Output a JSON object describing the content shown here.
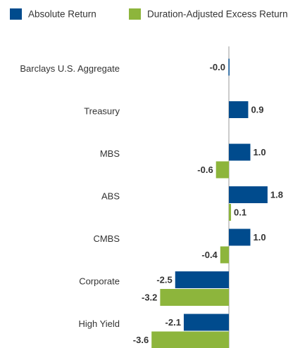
{
  "chart_data": {
    "type": "bar",
    "orientation": "horizontal",
    "categories": [
      "Barclays U.S. Aggregate",
      "Treasury",
      "MBS",
      "ABS",
      "CMBS",
      "Corporate",
      "High Yield"
    ],
    "series": [
      {
        "name": "Absolute Return",
        "color": "#004b8d",
        "values": [
          -0.02,
          0.9,
          1.0,
          1.8,
          1.0,
          -2.5,
          -2.1
        ],
        "value_labels": [
          "-0.0",
          "0.9",
          "1.0",
          "1.8",
          "1.0",
          "-2.5",
          "-2.1"
        ]
      },
      {
        "name": "Duration-Adjusted Excess Return",
        "color": "#8db53c",
        "values": [
          null,
          null,
          -0.6,
          0.1,
          -0.4,
          -3.2,
          -3.6
        ],
        "value_labels": [
          null,
          null,
          "-0.6",
          "0.1",
          "-0.4",
          "-3.2",
          "-3.6"
        ]
      }
    ],
    "legend": "top"
  }
}
